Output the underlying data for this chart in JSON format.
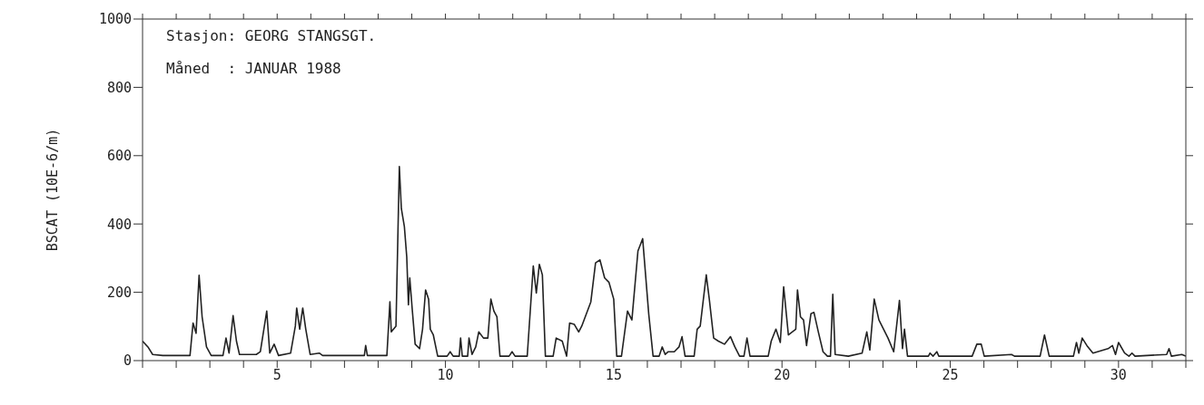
{
  "chart_data": {
    "type": "line",
    "ylabel": "BSCAT (10E-6/m)",
    "annotations": [
      "Stasjon: GEORG STANGSGT.",
      "Måned  : JANUAR 1988"
    ],
    "xlim": [
      1,
      32
    ],
    "xticks": [
      {
        "value": 1,
        "label": null
      },
      {
        "value": 2,
        "label": null
      },
      {
        "value": 3,
        "label": null
      },
      {
        "value": 4,
        "label": null
      },
      5,
      {
        "value": 6,
        "label": null
      },
      {
        "value": 7,
        "label": null
      },
      {
        "value": 8,
        "label": null
      },
      {
        "value": 9,
        "label": null
      },
      10,
      {
        "value": 11,
        "label": null
      },
      {
        "value": 12,
        "label": null
      },
      {
        "value": 13,
        "label": null
      },
      {
        "value": 14,
        "label": null
      },
      15,
      {
        "value": 16,
        "label": null
      },
      {
        "value": 17,
        "label": null
      },
      {
        "value": 18,
        "label": null
      },
      {
        "value": 19,
        "label": null
      },
      20,
      {
        "value": 21,
        "label": null
      },
      {
        "value": 22,
        "label": null
      },
      {
        "value": 23,
        "label": null
      },
      {
        "value": 24,
        "label": null
      },
      25,
      {
        "value": 26,
        "label": null
      },
      {
        "value": 27,
        "label": null
      },
      {
        "value": 28,
        "label": null
      },
      {
        "value": 29,
        "label": null
      },
      30,
      {
        "value": 31,
        "label": null
      },
      {
        "value": 32,
        "label": null
      }
    ],
    "ylim": [
      0,
      1000
    ],
    "yticks": [
      0,
      200,
      400,
      600,
      800,
      1000
    ],
    "marker": "none",
    "line_style": "solid",
    "series": [
      {
        "color": "#222222",
        "x": [
          1,
          1.16,
          1.3,
          1.6,
          2.41,
          2.5,
          2.59,
          2.68,
          2.77,
          2.9,
          3.04,
          3.39,
          3.48,
          3.57,
          3.69,
          3.79,
          3.88,
          4.38,
          4.5,
          4.69,
          4.78,
          4.91,
          5.04,
          5.4,
          5.54,
          5.58,
          5.67,
          5.76,
          5.85,
          5.98,
          6.25,
          6.35,
          7.59,
          7.63,
          7.68,
          8.26,
          8.35,
          8.39,
          8.53,
          8.63,
          8.69,
          8.78,
          8.85,
          8.9,
          8.94,
          9.01,
          9.1,
          9.23,
          9.32,
          9.41,
          9.5,
          9.55,
          9.64,
          9.77,
          10.05,
          10.14,
          10.23,
          10.41,
          10.45,
          10.5,
          10.66,
          10.7,
          10.79,
          10.9,
          10.99,
          11.13,
          11.26,
          11.35,
          11.44,
          11.53,
          11.62,
          11.89,
          11.98,
          12.07,
          12.43,
          12.61,
          12.7,
          12.79,
          12.88,
          12.97,
          13.2,
          13.29,
          13.47,
          13.6,
          13.69,
          13.83,
          13.96,
          14.05,
          14.32,
          14.46,
          14.59,
          14.73,
          14.86,
          15,
          15.09,
          15.23,
          15.41,
          15.54,
          15.72,
          15.86,
          16.04,
          16.17,
          16.35,
          16.44,
          16.53,
          16.62,
          16.8,
          16.94,
          17.03,
          17.12,
          17.39,
          17.48,
          17.57,
          17.75,
          17.84,
          17.97,
          18.11,
          18.29,
          18.47,
          18.6,
          18.74,
          18.87,
          18.96,
          19.05,
          19.59,
          19.68,
          19.82,
          19.95,
          20.05,
          20.19,
          20.41,
          20.46,
          20.55,
          20.64,
          20.73,
          20.86,
          20.95,
          21.08,
          21.22,
          21.35,
          21.44,
          21.51,
          21.58,
          21.97,
          22.38,
          22.52,
          22.61,
          22.74,
          22.88,
          23.15,
          23.32,
          23.49,
          23.58,
          23.64,
          23.73,
          24.35,
          24.4,
          24.49,
          24.6,
          24.66,
          25.65,
          25.79,
          25.92,
          26.01,
          26.82,
          26.91,
          27.67,
          27.8,
          27.94,
          28.66,
          28.75,
          28.82,
          28.92,
          29.06,
          29.24,
          29.69,
          29.82,
          29.91,
          30,
          30.18,
          30.31,
          30.4,
          30.49,
          31.43,
          31.5,
          31.57,
          31.88,
          32
        ],
        "values": [
          57,
          40,
          18,
          15,
          15,
          110,
          80,
          250,
          128,
          40,
          15,
          15,
          66,
          22,
          132,
          57,
          18,
          18,
          26,
          145,
          22,
          48,
          15,
          22,
          101,
          154,
          92,
          154,
          92,
          18,
          22,
          15,
          15,
          44,
          15,
          15,
          172,
          84,
          101,
          568,
          445,
          392,
          304,
          163,
          242,
          154,
          48,
          35,
          92,
          207,
          180,
          92,
          75,
          13,
          13,
          26,
          13,
          13,
          66,
          13,
          13,
          66,
          18,
          40,
          84,
          66,
          66,
          180,
          145,
          128,
          13,
          13,
          26,
          13,
          13,
          277,
          198,
          282,
          251,
          13,
          13,
          66,
          57,
          13,
          110,
          106,
          84,
          101,
          172,
          286,
          295,
          242,
          229,
          180,
          13,
          13,
          145,
          119,
          321,
          357,
          137,
          13,
          13,
          40,
          18,
          26,
          26,
          40,
          70,
          13,
          13,
          92,
          101,
          251,
          180,
          66,
          57,
          48,
          70,
          40,
          13,
          13,
          66,
          13,
          13,
          57,
          92,
          53,
          216,
          75,
          92,
          207,
          128,
          119,
          44,
          137,
          141,
          84,
          26,
          13,
          13,
          194,
          18,
          13,
          22,
          84,
          31,
          180,
          119,
          66,
          26,
          176,
          35,
          92,
          13,
          13,
          22,
          13,
          26,
          13,
          13,
          48,
          48,
          13,
          18,
          13,
          13,
          75,
          13,
          13,
          53,
          22,
          66,
          44,
          22,
          35,
          44,
          18,
          53,
          22,
          13,
          22,
          13,
          18,
          35,
          13,
          18,
          13
        ]
      }
    ]
  }
}
